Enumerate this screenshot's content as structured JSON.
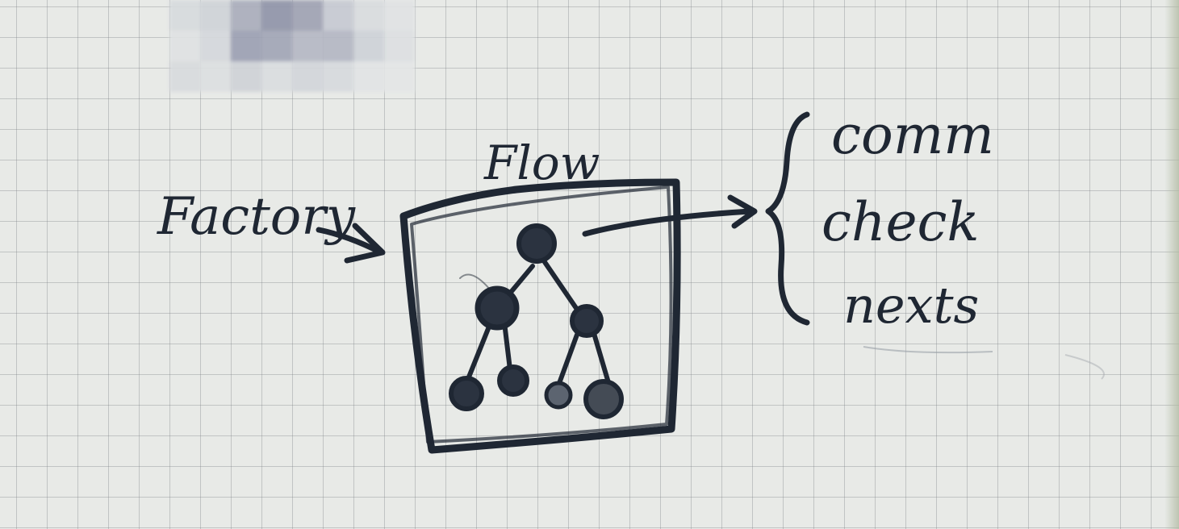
{
  "diagram": {
    "input_label": "Factory",
    "box_title": "Flow",
    "outputs": [
      "comm",
      "check",
      "nexts"
    ]
  },
  "colors": {
    "paper": "#e8eae7",
    "grid": "#7d8286",
    "ink": "#1f2733"
  },
  "icons": {
    "tree": "tree-nodes-icon",
    "arrow": "arrow-right-icon",
    "brace": "left-brace-icon"
  }
}
